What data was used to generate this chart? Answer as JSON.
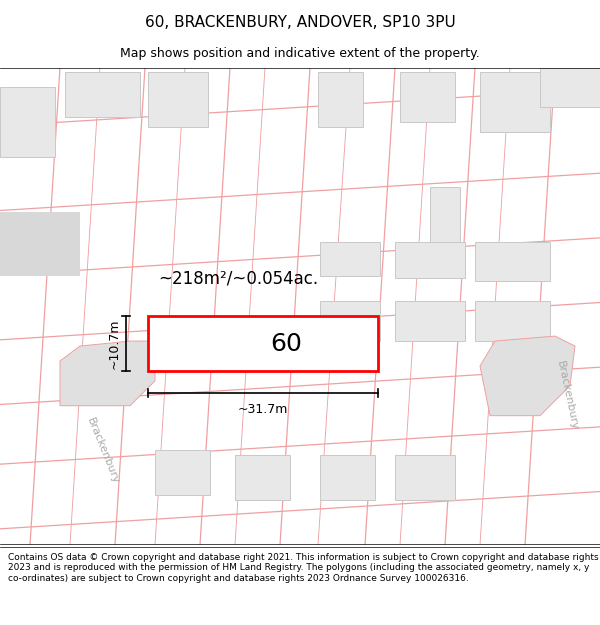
{
  "title": "60, BRACKENBURY, ANDOVER, SP10 3PU",
  "subtitle": "Map shows position and indicative extent of the property.",
  "area_label": "~218m²/~0.054ac.",
  "width_label": "~31.7m",
  "height_label": "~10.7m",
  "plot_number": "60",
  "footer": "Contains OS data © Crown copyright and database right 2021. This information is subject to Crown copyright and database rights 2023 and is reproduced with the permission of HM Land Registry. The polygons (including the associated geometry, namely x, y co-ordinates) are subject to Crown copyright and database rights 2023 Ordnance Survey 100026316.",
  "bg_color": "#ffffff",
  "map_bg": "#ffffff",
  "building_fill": "#e8e8e8",
  "building_stroke": "#c8c8c8",
  "road_line_color": "#f0a0a0",
  "highlight_fill": "#ffffff",
  "highlight_stroke": "#ff0000",
  "title_fontsize": 11,
  "subtitle_fontsize": 9,
  "footer_fontsize": 6.5,
  "annotation_fontsize": 12,
  "dim_fontsize": 9,
  "plot_label_fontsize": 18,
  "road_text_color": "#aaaaaa",
  "road_text_fontsize": 8
}
